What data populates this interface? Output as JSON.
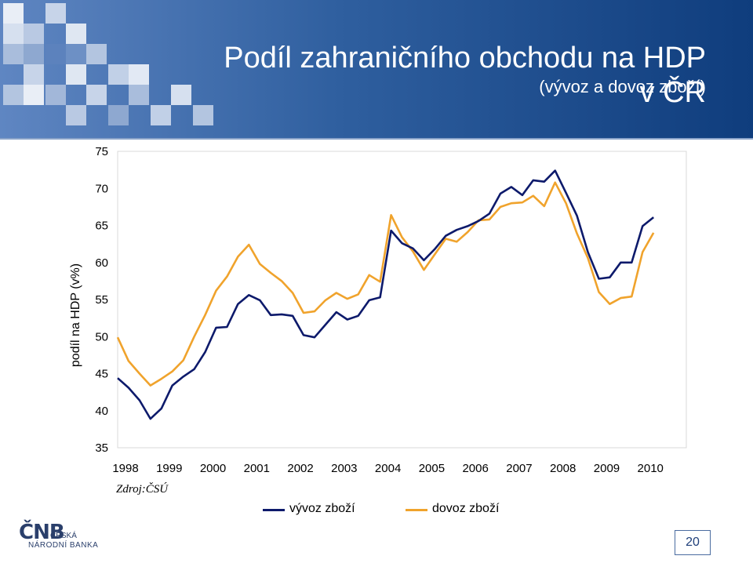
{
  "header": {
    "title": "Podíl zahraničního obchodu na HDP v ČR",
    "subtitle": "(vývoz a dovoz zboží)"
  },
  "source_note": "Zdroj:ČSÚ",
  "logo": {
    "mark": "ČNB",
    "line1": "ČESKÁ",
    "line2": "NÁRODNÍ BANKA"
  },
  "page_number": "20",
  "colors": {
    "export": "#0d1a6b",
    "import": "#f0a32c",
    "header_dark": "#0f3d7d",
    "header_light": "#5f86c2"
  },
  "chart_data": {
    "type": "line",
    "title": "",
    "xlabel": "",
    "ylabel": "podíl na HDP (v%)",
    "ylim": [
      35,
      75
    ],
    "yticks": [
      35,
      40,
      45,
      50,
      55,
      60,
      65,
      70,
      75
    ],
    "xlim": [
      1998,
      2011
    ],
    "x_tick_labels": [
      "1998",
      "1999",
      "2000",
      "2001",
      "2002",
      "2003",
      "2004",
      "2005",
      "2006",
      "2007",
      "2008",
      "2009",
      "2010"
    ],
    "grid": false,
    "legend_position": "bottom",
    "series": [
      {
        "name": "vývoz zboží",
        "color": "#0d1a6b",
        "x": [
          1998.0,
          1998.25,
          1998.5,
          1998.75,
          1999.0,
          1999.25,
          1999.5,
          1999.75,
          2000.0,
          2000.25,
          2000.5,
          2000.75,
          2001.0,
          2001.25,
          2001.5,
          2001.75,
          2002.0,
          2002.25,
          2002.5,
          2002.75,
          2003.0,
          2003.25,
          2003.5,
          2003.75,
          2004.0,
          2004.25,
          2004.5,
          2004.75,
          2005.0,
          2005.25,
          2005.5,
          2005.75,
          2006.0,
          2006.25,
          2006.5,
          2006.75,
          2007.0,
          2007.25,
          2007.5,
          2007.75,
          2008.0,
          2008.25,
          2008.5,
          2008.75,
          2009.0,
          2009.25,
          2009.5,
          2009.75,
          2010.0,
          2010.25
        ],
        "values": [
          44.4,
          43.1,
          41.4,
          38.9,
          40.3,
          43.4,
          44.6,
          45.6,
          47.9,
          51.2,
          51.3,
          54.4,
          55.6,
          54.9,
          52.9,
          53.0,
          52.8,
          50.2,
          49.9,
          51.6,
          53.3,
          52.3,
          52.8,
          54.9,
          55.3,
          64.3,
          62.6,
          61.9,
          60.3,
          61.8,
          63.6,
          64.4,
          64.9,
          65.6,
          66.6,
          69.3,
          70.2,
          69.1,
          71.1,
          70.9,
          72.4,
          69.4,
          66.3,
          61.4,
          57.8,
          58.0,
          60.0,
          60.0,
          64.9,
          66.1
        ]
      },
      {
        "name": "dovoz zboží",
        "color": "#f0a32c",
        "x": [
          1998.0,
          1998.25,
          1998.5,
          1998.75,
          1999.0,
          1999.25,
          1999.5,
          1999.75,
          2000.0,
          2000.25,
          2000.5,
          2000.75,
          2001.0,
          2001.25,
          2001.5,
          2001.75,
          2002.0,
          2002.25,
          2002.5,
          2002.75,
          2003.0,
          2003.25,
          2003.5,
          2003.75,
          2004.0,
          2004.25,
          2004.5,
          2004.75,
          2005.0,
          2005.25,
          2005.5,
          2005.75,
          2006.0,
          2006.25,
          2006.5,
          2006.75,
          2007.0,
          2007.25,
          2007.5,
          2007.75,
          2008.0,
          2008.25,
          2008.5,
          2008.75,
          2009.0,
          2009.25,
          2009.5,
          2009.75,
          2010.0,
          2010.25
        ],
        "values": [
          49.9,
          46.7,
          45.0,
          43.4,
          44.3,
          45.3,
          46.8,
          50.0,
          52.9,
          56.2,
          58.1,
          60.8,
          62.4,
          59.8,
          58.6,
          57.5,
          55.9,
          53.2,
          53.4,
          54.9,
          55.9,
          55.1,
          55.7,
          58.3,
          57.4,
          66.4,
          63.4,
          61.5,
          59.0,
          61.1,
          63.2,
          62.8,
          64.1,
          65.7,
          65.8,
          67.5,
          68.0,
          68.1,
          69.0,
          67.6,
          70.8,
          68.0,
          63.9,
          60.6,
          56.0,
          54.4,
          55.2,
          55.4,
          61.4,
          64.0
        ]
      }
    ]
  }
}
